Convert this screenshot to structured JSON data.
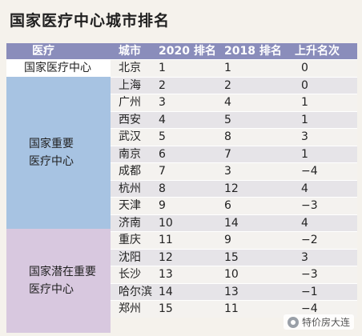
{
  "title": "国家医疗中心城市排名",
  "header": {
    "group": "医疗",
    "city": "城市",
    "rank2020": "2020 排名",
    "rank2018": "2018 排名",
    "up": "上升名次"
  },
  "groups": [
    {
      "label": "国家医疗中心"
    },
    {
      "label_lines": [
        "国家重要",
        "医疗中心"
      ]
    },
    {
      "label_lines": [
        "国家潜在重要",
        "医疗中心"
      ]
    }
  ],
  "rows": [
    {
      "city": "北京",
      "r2020": "1",
      "r2018": "1",
      "up": "0"
    },
    {
      "city": "上海",
      "r2020": "2",
      "r2018": "2",
      "up": "0"
    },
    {
      "city": "广州",
      "r2020": "3",
      "r2018": "4",
      "up": "1"
    },
    {
      "city": "西安",
      "r2020": "4",
      "r2018": "5",
      "up": "1"
    },
    {
      "city": "武汉",
      "r2020": "5",
      "r2018": "8",
      "up": "3"
    },
    {
      "city": "南京",
      "r2020": "6",
      "r2018": "7",
      "up": "1"
    },
    {
      "city": "成都",
      "r2020": "7",
      "r2018": "3",
      "up": "−4"
    },
    {
      "city": "杭州",
      "r2020": "8",
      "r2018": "12",
      "up": "4"
    },
    {
      "city": "天津",
      "r2020": "9",
      "r2018": "6",
      "up": "−3"
    },
    {
      "city": "济南",
      "r2020": "10",
      "r2018": "14",
      "up": "4"
    },
    {
      "city": "重庆",
      "r2020": "11",
      "r2018": "9",
      "up": "−2"
    },
    {
      "city": "沈阳",
      "r2020": "12",
      "r2018": "15",
      "up": "3"
    },
    {
      "city": "长沙",
      "r2020": "13",
      "r2018": "10",
      "up": "−3"
    },
    {
      "city": "哈尔滨",
      "r2020": "14",
      "r2018": "13",
      "up": "−1"
    },
    {
      "city": "郑州",
      "r2020": "15",
      "r2018": "11",
      "up": "−4"
    }
  ],
  "watermark": "特价房大连",
  "colors": {
    "header": "#8a8dbb",
    "group2": "#a7c3e2",
    "group3": "#d8c8df"
  }
}
